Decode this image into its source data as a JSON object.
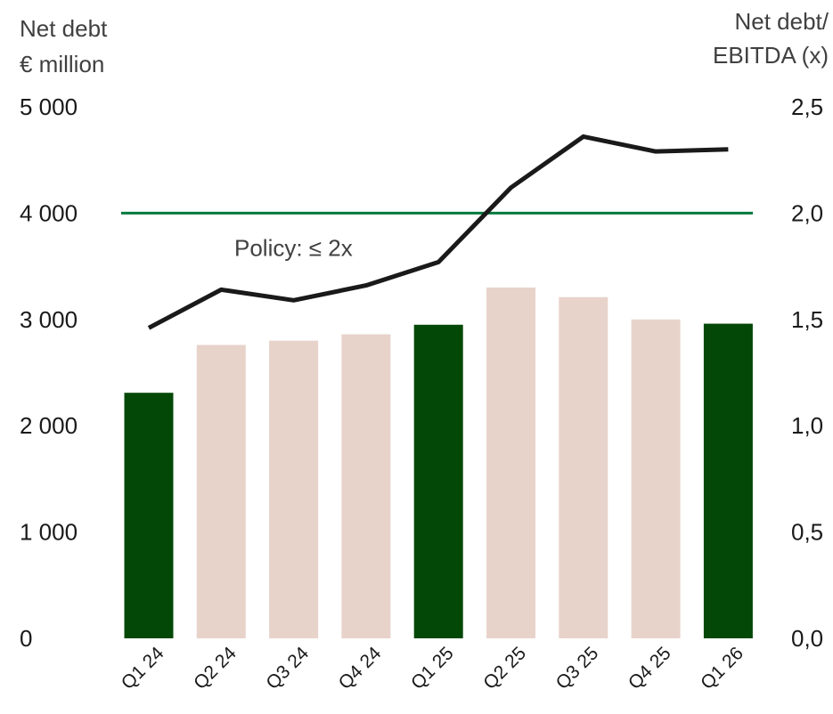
{
  "chart_data": {
    "type": "bar",
    "categories": [
      "Q1 24",
      "Q2 24",
      "Q3 24",
      "Q4 24",
      "Q1 25",
      "Q2 25",
      "Q3 25",
      "Q4 25",
      "Q1 26"
    ],
    "series": [
      {
        "type": "bar",
        "axis": "left",
        "values": [
          2310,
          2760,
          2800,
          2860,
          2950,
          3300,
          3210,
          3000,
          2960
        ],
        "highlight": [
          true,
          false,
          false,
          false,
          true,
          false,
          false,
          false,
          true
        ],
        "color_highlight": "#034806",
        "color_default": "#e8d3cb"
      },
      {
        "type": "line",
        "axis": "right",
        "values": [
          1.46,
          1.64,
          1.59,
          1.66,
          1.77,
          2.12,
          2.36,
          2.29,
          2.3
        ],
        "color": "#1a1a1a"
      }
    ],
    "reference_line": {
      "axis": "right",
      "value": 2.0,
      "color": "#007a3d",
      "label": "Policy: ≤ 2x"
    },
    "ylabel_left_line1": "Net debt",
    "ylabel_left_line2": "€ million",
    "ylabel_right_line1": "Net debt/",
    "ylabel_right_line2": "EBITDA (x)",
    "ylim_left": [
      0,
      5000
    ],
    "ylim_right": [
      0,
      2.5
    ],
    "yticks_left": [
      "0",
      "1 000",
      "2 000",
      "3 000",
      "4 000",
      "5 000"
    ],
    "yticks_right": [
      "0,0",
      "0,5",
      "1,0",
      "1,5",
      "2,0",
      "2,5"
    ],
    "grid": false,
    "legend": "none"
  }
}
